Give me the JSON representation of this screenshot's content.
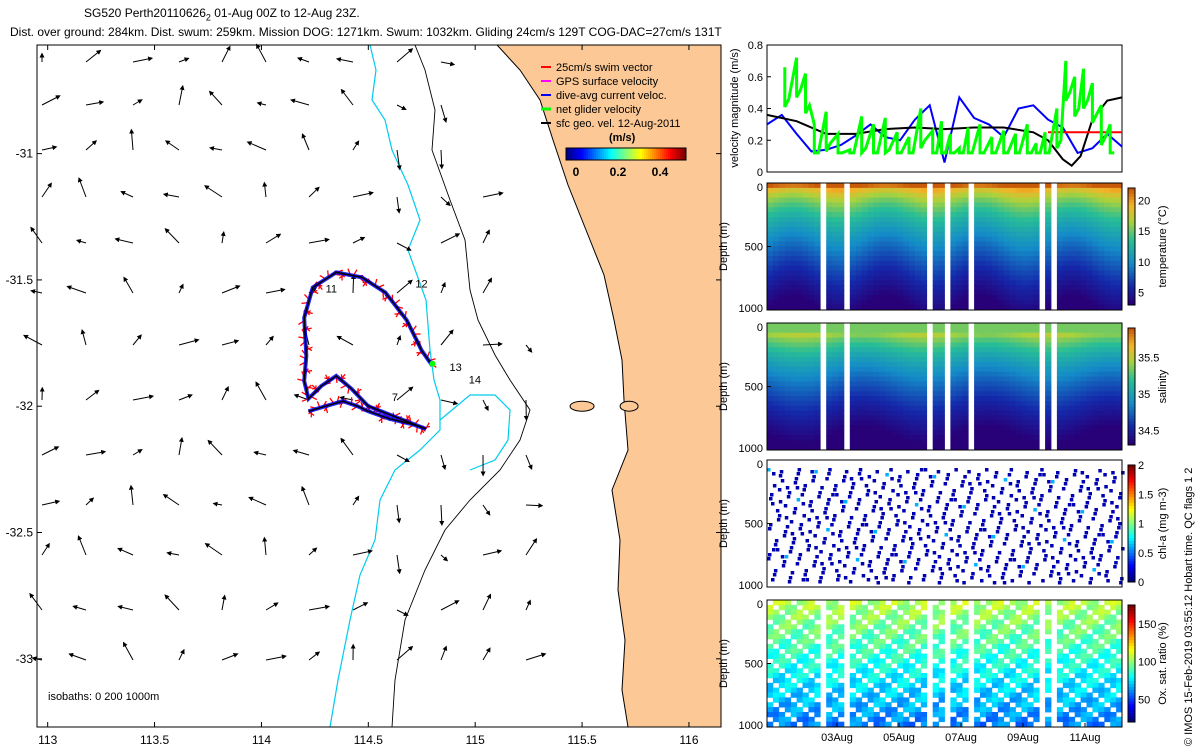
{
  "header": {
    "title": "SG520 Perth20110626",
    "subscript": "2",
    "title_rest": " 01-Aug 00Z to 12-Aug 23Z.",
    "stats": "Dist. over ground: 284km. Dist. swum: 259km. Mission DOG: 1271km. Swum: 1032km. Gliding 24cm/s 129T COG-DAC=27cm/s 131T"
  },
  "footer_note": "© IMOS 15-Feb-2019 03:55:12 Hobart time. QC flags 1  2",
  "colors": {
    "land": "#fbc896",
    "coast": "#000000",
    "isobath200": "#00ccee",
    "isobath1000": "#000000",
    "swim": "#ff0000",
    "gps": "#ff00ff",
    "dac": "#0000ff",
    "net": "#00ff00",
    "sfc": "#000000"
  },
  "chart_data": [
    {
      "type": "scatter",
      "name": "map",
      "xlim": [
        112.95,
        116.15
      ],
      "ylim": [
        -33.27,
        -30.57
      ],
      "x_ticks": [
        "113",
        "113.5",
        "114",
        "114.5",
        "115",
        "115.5",
        "116"
      ],
      "y_ticks": [
        "-31",
        "-31.5",
        "-32",
        "-32.5",
        "-33"
      ],
      "legend": [
        {
          "label": "25cm/s swim vector",
          "color": "#ff0000"
        },
        {
          "label": "GPS surface velocity",
          "color": "#ff00ff"
        },
        {
          "label": "dive-avg current veloc.",
          "color": "#0000ff"
        },
        {
          "label": "net glider velocity",
          "color": "#00ff00"
        },
        {
          "label": "sfc geo. vel. 12-Aug-2011",
          "color": "#000000"
        }
      ],
      "speed_colorbar": {
        "label": "(m/s)",
        "range": [
          0,
          0.5
        ],
        "ticks": [
          "0",
          "0.2",
          "0.4"
        ]
      },
      "isobath_label": "isobaths: 0   200   1000m",
      "track": [
        [
          114.22,
          -32.02
        ],
        [
          114.3,
          -32.0
        ],
        [
          114.38,
          -31.98
        ],
        [
          114.45,
          -32.0
        ],
        [
          114.5,
          -32.02
        ],
        [
          114.6,
          -32.05
        ],
        [
          114.7,
          -32.07
        ],
        [
          114.77,
          -32.09
        ],
        [
          114.62,
          -32.04
        ],
        [
          114.5,
          -32.0
        ],
        [
          114.42,
          -31.93
        ],
        [
          114.35,
          -31.88
        ],
        [
          114.28,
          -31.92
        ],
        [
          114.22,
          -31.97
        ],
        [
          114.2,
          -31.9
        ],
        [
          114.21,
          -31.8
        ],
        [
          114.2,
          -31.65
        ],
        [
          114.24,
          -31.53
        ],
        [
          114.35,
          -31.47
        ],
        [
          114.47,
          -31.49
        ],
        [
          114.58,
          -31.55
        ],
        [
          114.68,
          -31.66
        ],
        [
          114.75,
          -31.78
        ],
        [
          114.8,
          -31.84
        ]
      ],
      "day_labels": [
        {
          "text": "7",
          "lon": 114.61,
          "lat": -31.98
        },
        {
          "text": "11",
          "lon": 114.3,
          "lat": -31.55
        },
        {
          "text": "12",
          "lon": 114.72,
          "lat": -31.53
        },
        {
          "text": "13",
          "lon": 114.88,
          "lat": -31.86
        },
        {
          "text": "14",
          "lon": 114.97,
          "lat": -31.91
        }
      ],
      "islands": [
        [
          115.5,
          -32.0
        ],
        [
          115.72,
          -32.0
        ]
      ]
    },
    {
      "type": "line",
      "name": "velocity",
      "ylabel": "velocity magnitude (m/s)",
      "ylim": [
        0,
        0.8
      ],
      "y_ticks": [
        "0",
        "0.2",
        "0.4",
        "0.6",
        "0.8"
      ],
      "xlim": [
        0,
        12
      ],
      "series": [
        {
          "name": "dive-avg current veloc.",
          "color": "#0000ff",
          "x": [
            0,
            0.5,
            1,
            1.5,
            2,
            2.5,
            3,
            3.5,
            4,
            4.5,
            5,
            5.5,
            6,
            6.5,
            7,
            7.5,
            8,
            8.5,
            9,
            9.5,
            10,
            10.5,
            11,
            11.5,
            12
          ],
          "y": [
            0.3,
            0.36,
            0.24,
            0.13,
            0.14,
            0.17,
            0.23,
            0.3,
            0.22,
            0.2,
            0.33,
            0.42,
            0.06,
            0.47,
            0.34,
            0.3,
            0.22,
            0.4,
            0.42,
            0.33,
            0.28,
            0.12,
            0.15,
            0.24,
            0.16
          ]
        },
        {
          "name": "sfc geo. vel. 12-Aug-2011",
          "color": "#000000",
          "x": [
            0,
            1,
            2,
            3,
            4,
            5,
            6,
            7,
            8,
            9,
            9.5,
            10,
            10.3,
            10.6,
            11,
            11.5,
            12
          ],
          "y": [
            0.36,
            0.32,
            0.24,
            0.24,
            0.27,
            0.28,
            0.27,
            0.28,
            0.28,
            0.25,
            0.2,
            0.08,
            0.04,
            0.1,
            0.33,
            0.45,
            0.47
          ]
        },
        {
          "name": "25cm/s swim vector",
          "color": "#ff0000",
          "x": [
            9.5,
            12
          ],
          "y": [
            0.25,
            0.25
          ]
        },
        {
          "name": "net glider velocity",
          "color": "#00ff00",
          "x": [
            0.6,
            1.0,
            1.3,
            1.6,
            2.0,
            2.4,
            2.8,
            3.2,
            3.6,
            4.0,
            4.4,
            4.8,
            5.2,
            5.6,
            5.9,
            6.2,
            6.5,
            6.8,
            7.2,
            7.6,
            8.0,
            8.4,
            8.8,
            9.1,
            9.4,
            9.8,
            10.1,
            10.4,
            10.7,
            11.0,
            11.3,
            11.6
          ],
          "y": [
            0.66,
            0.72,
            0.62,
            0.3,
            0.38,
            0.24,
            0.14,
            0.35,
            0.3,
            0.34,
            0.25,
            0.22,
            0.4,
            0.26,
            0.32,
            0.24,
            0.15,
            0.28,
            0.3,
            0.22,
            0.26,
            0.24,
            0.3,
            0.18,
            0.25,
            0.4,
            0.7,
            0.6,
            0.65,
            0.56,
            0.42,
            0.3
          ]
        }
      ]
    },
    {
      "type": "heatmap",
      "name": "temperature",
      "ylabel": "Depth (m)",
      "y_ticks": [
        "0",
        "500",
        "1000"
      ],
      "ylim": [
        1000,
        0
      ],
      "colorbar_label": "temperature (°C)",
      "colorbar_ticks": [
        "20",
        "15",
        "10",
        "5"
      ],
      "crange": [
        3,
        22
      ]
    },
    {
      "type": "heatmap",
      "name": "salinity",
      "ylabel": "Depth (m)",
      "y_ticks": [
        "0",
        "500",
        "1000"
      ],
      "ylim": [
        1000,
        0
      ],
      "colorbar_label": "salinity",
      "colorbar_ticks": [
        "35.5",
        "35",
        "34.5"
      ],
      "crange": [
        34.3,
        35.9
      ]
    },
    {
      "type": "scatter",
      "name": "chlorophyll",
      "ylabel": "Depth (m)",
      "y_ticks": [
        "0",
        "500",
        "1000"
      ],
      "ylim": [
        1000,
        0
      ],
      "colorbar_label": "chl-a (mg m-3)",
      "colorbar_ticks": [
        "2",
        "1.5",
        "1",
        "0.5",
        "0"
      ],
      "crange": [
        0,
        2
      ]
    },
    {
      "type": "heatmap",
      "name": "oxygen",
      "ylabel": "Depth (m)",
      "y_ticks": [
        "0",
        "500",
        "1000"
      ],
      "ylim": [
        1000,
        0
      ],
      "colorbar_label": "Ox. sat. ratio (%)",
      "colorbar_ticks": [
        "150",
        "100",
        "50"
      ],
      "crange": [
        20,
        175
      ],
      "x_ticks": [
        "03Aug",
        "05Aug",
        "07Aug",
        "09Aug",
        "11Aug"
      ]
    }
  ]
}
